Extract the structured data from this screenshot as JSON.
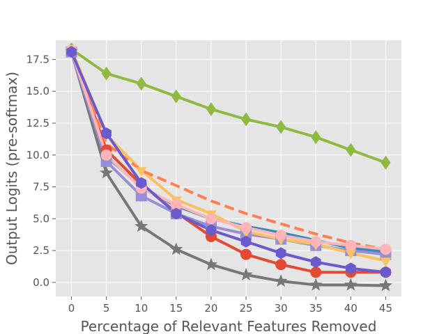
{
  "chart_data": {
    "type": "line",
    "title": "",
    "xlabel": "Percentage of Relevant Features Removed",
    "ylabel": "Output Logits (pre-softmax)",
    "x": [
      0,
      5,
      10,
      15,
      20,
      25,
      30,
      35,
      40,
      45
    ],
    "xlim": [
      -2.25,
      47.25
    ],
    "ylim": [
      -1.1,
      19.0
    ],
    "xticks": [
      0,
      5,
      10,
      15,
      20,
      25,
      30,
      35,
      40,
      45
    ],
    "yticks": [
      0.0,
      2.5,
      5.0,
      7.5,
      10.0,
      12.5,
      15.0,
      17.5
    ],
    "xtick_labels": [
      "0",
      "5",
      "10",
      "15",
      "20",
      "25",
      "30",
      "35",
      "40",
      "45"
    ],
    "ytick_labels": [
      "0.0",
      "2.5",
      "5.0",
      "7.5",
      "10.0",
      "12.5",
      "15.0",
      "17.5"
    ],
    "grid": true,
    "legend": "none",
    "series": [
      {
        "color": "#e24a33",
        "marker": "circle",
        "dashed": false,
        "values": [
          18.2,
          10.4,
          7.7,
          5.5,
          3.6,
          2.2,
          1.4,
          0.8,
          0.8,
          0.8
        ]
      },
      {
        "color": "#348abd",
        "marker": "none",
        "dashed": false,
        "values": [
          18.2,
          9.9,
          7.5,
          6.0,
          5.0,
          4.4,
          3.9,
          3.3,
          2.7,
          2.4
        ]
      },
      {
        "color": "#777777",
        "marker": "star",
        "dashed": false,
        "values": [
          18.1,
          8.6,
          4.4,
          2.6,
          1.4,
          0.6,
          0.1,
          -0.2,
          -0.2,
          -0.25
        ]
      },
      {
        "color": "#988ed5",
        "marker": "square",
        "dashed": false,
        "values": [
          18.1,
          9.5,
          6.8,
          5.4,
          4.4,
          3.8,
          3.4,
          2.9,
          2.5,
          2.2
        ]
      },
      {
        "color": "#fbc15e",
        "marker": "triangle-down",
        "dashed": false,
        "values": [
          18.3,
          11.6,
          8.8,
          6.5,
          5.4,
          4.0,
          3.4,
          3.0,
          2.3,
          1.7
        ]
      },
      {
        "color": "#8eba42",
        "marker": "diamond",
        "dashed": false,
        "values": [
          18.3,
          16.4,
          15.6,
          14.6,
          13.6,
          12.8,
          12.2,
          11.4,
          10.4,
          9.4
        ]
      },
      {
        "color": "#ff7f50",
        "marker": "none",
        "dashed": true,
        "values": [
          18.2,
          10.9,
          8.8,
          7.6,
          6.4,
          5.4,
          4.6,
          3.8,
          3.1,
          2.6
        ]
      },
      {
        "color": "#ffb5b8",
        "marker": "circle",
        "dashed": false,
        "values": [
          18.2,
          10.0,
          7.4,
          6.1,
          5.0,
          4.3,
          3.7,
          3.2,
          2.9,
          2.6
        ]
      },
      {
        "color": "#6a5acd",
        "marker": "hexagon",
        "dashed": false,
        "values": [
          18.1,
          11.7,
          7.8,
          5.4,
          4.1,
          3.2,
          2.3,
          1.6,
          1.1,
          0.8
        ]
      }
    ]
  }
}
